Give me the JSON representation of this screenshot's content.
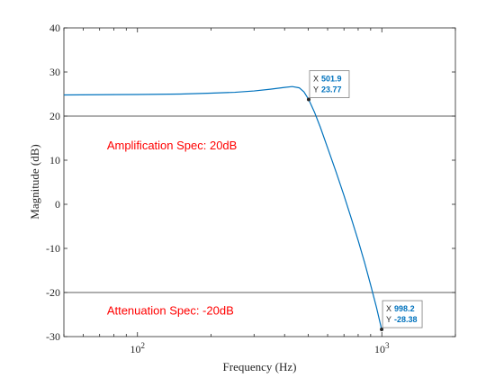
{
  "chart_data": {
    "type": "line",
    "xlabel": "Frequency (Hz)",
    "ylabel": "Magnitude (dB)",
    "xscale": "log",
    "xlim": [
      50,
      2000
    ],
    "ylim": [
      -30,
      40
    ],
    "grid": false,
    "yticks": [
      -30,
      -20,
      -10,
      0,
      10,
      20,
      30,
      40
    ],
    "yticklabels": [
      "-30",
      "-20",
      "-10",
      "0",
      "10",
      "20",
      "30",
      "40"
    ],
    "xticks": [
      {
        "value": 100,
        "base": "10",
        "exp": "2"
      },
      {
        "value": 1000,
        "base": "10",
        "exp": "3"
      }
    ],
    "series": [
      {
        "color": "#0072BD",
        "x": [
          50,
          70,
          100,
          150,
          200,
          250,
          300,
          350,
          400,
          430,
          460,
          480,
          501.9,
          530,
          560,
          600,
          650,
          700,
          750,
          800,
          850,
          900,
          950,
          998.2
        ],
        "y": [
          24.8,
          24.85,
          24.9,
          25.0,
          25.2,
          25.4,
          25.7,
          26.1,
          26.5,
          26.7,
          26.4,
          25.5,
          23.77,
          20.9,
          17.5,
          12.8,
          7.3,
          2.0,
          -3.2,
          -8.2,
          -13.2,
          -18.3,
          -23.3,
          -28.38
        ]
      }
    ],
    "hlines": [
      {
        "y": 20,
        "label": "Amplification Spec: 20dB",
        "label_x": 75,
        "label_y": 12.5
      },
      {
        "y": -20,
        "label": "Attenuation Spec: -20dB",
        "label_x": 75,
        "label_y": -25
      }
    ],
    "annotation_color": "#FF0000",
    "datatips": [
      {
        "x": 501.9,
        "y": 23.77,
        "x_label": "X",
        "y_label": "Y",
        "x_text": "501.9",
        "y_text": "23.77"
      },
      {
        "x": 998.2,
        "y": -28.38,
        "x_label": "X",
        "y_label": "Y",
        "x_text": "998.2",
        "y_text": "-28.38"
      }
    ],
    "datatip_value_color": "#0072BD"
  }
}
